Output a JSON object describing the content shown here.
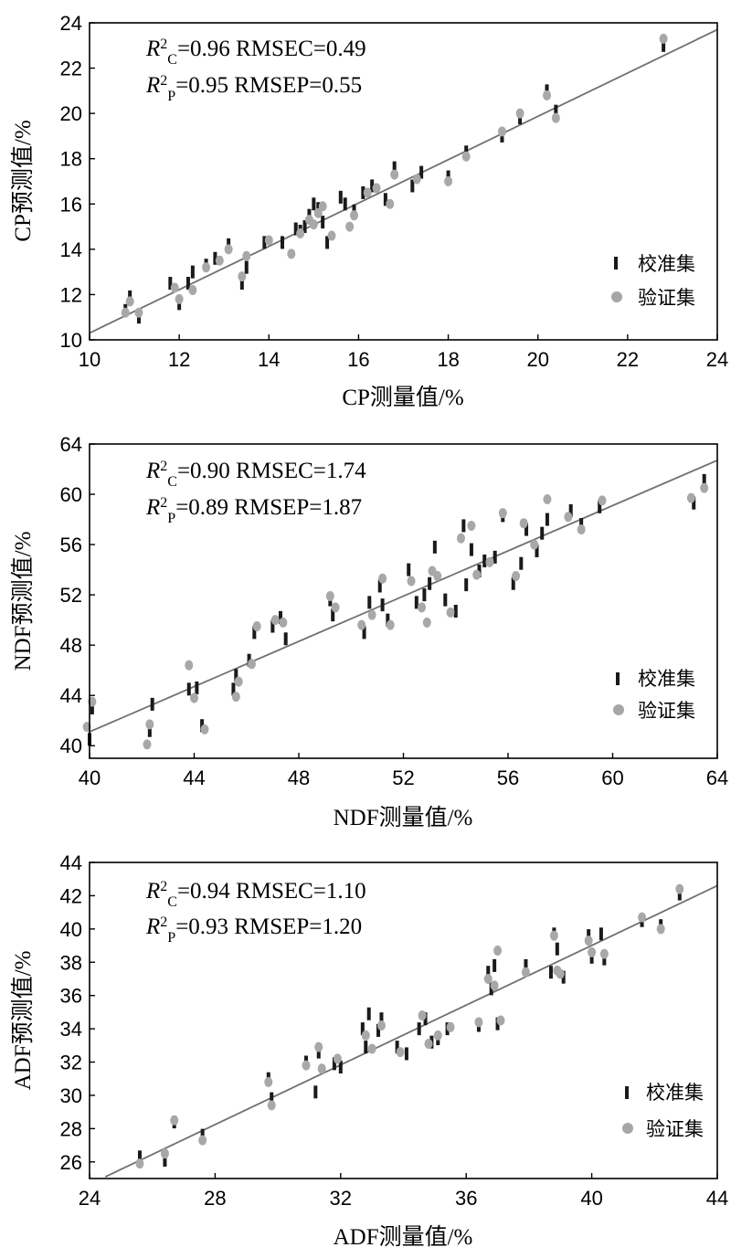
{
  "chart_data": [
    {
      "type": "scatter",
      "xlabel": "CP测量值/%",
      "ylabel": "CP预测值/%",
      "xlim": [
        10,
        24
      ],
      "ylim": [
        10,
        24
      ],
      "xticks": [
        "10",
        "12",
        "14",
        "16",
        "18",
        "20",
        "22",
        "24"
      ],
      "yticks": [
        "10",
        "12",
        "14",
        "16",
        "18",
        "20",
        "22",
        "24"
      ],
      "stats": {
        "rc_prefix": "R",
        "rc_sup": "2",
        "rc_sub": "C",
        "rc_rest": "=0.96 RMSEC=0.49",
        "rp_prefix": "R",
        "rp_sup": "2",
        "rp_sub": "P",
        "rp_rest": "=0.95 RMSEP=0.55"
      },
      "fit_line": [
        [
          10,
          10.3
        ],
        [
          24,
          23.7
        ]
      ],
      "legend": [
        "校准集",
        "验证集"
      ],
      "legend_position": "bottom-right",
      "calibration": [
        [
          10.8,
          11.3
        ],
        [
          10.9,
          11.9
        ],
        [
          11.1,
          11.0
        ],
        [
          11.8,
          12.5
        ],
        [
          12.0,
          11.6
        ],
        [
          12.2,
          12.5
        ],
        [
          12.3,
          13.0
        ],
        [
          12.6,
          13.3
        ],
        [
          12.8,
          13.6
        ],
        [
          13.1,
          14.2
        ],
        [
          13.4,
          12.5
        ],
        [
          13.5,
          13.2
        ],
        [
          13.9,
          14.3
        ],
        [
          14.3,
          14.3
        ],
        [
          14.6,
          14.9
        ],
        [
          14.7,
          14.8
        ],
        [
          14.8,
          15.0
        ],
        [
          14.9,
          15.5
        ],
        [
          15.0,
          16.0
        ],
        [
          15.1,
          15.8
        ],
        [
          15.2,
          15.2
        ],
        [
          15.3,
          14.3
        ],
        [
          15.6,
          16.3
        ],
        [
          15.7,
          16.0
        ],
        [
          15.9,
          15.7
        ],
        [
          16.1,
          16.5
        ],
        [
          16.3,
          16.8
        ],
        [
          16.6,
          16.2
        ],
        [
          16.8,
          17.6
        ],
        [
          17.2,
          16.8
        ],
        [
          17.4,
          17.4
        ],
        [
          18.0,
          17.2
        ],
        [
          18.4,
          18.3
        ],
        [
          19.2,
          19.0
        ],
        [
          19.6,
          19.8
        ],
        [
          20.2,
          21.0
        ],
        [
          20.4,
          20.1
        ],
        [
          22.8,
          23.0
        ]
      ],
      "validation": [
        [
          10.8,
          11.2
        ],
        [
          10.9,
          11.7
        ],
        [
          11.1,
          11.2
        ],
        [
          11.9,
          12.3
        ],
        [
          12.0,
          11.8
        ],
        [
          12.3,
          12.2
        ],
        [
          12.6,
          13.2
        ],
        [
          12.9,
          13.5
        ],
        [
          13.1,
          14.0
        ],
        [
          13.4,
          12.8
        ],
        [
          13.5,
          13.7
        ],
        [
          14.0,
          14.4
        ],
        [
          14.5,
          13.8
        ],
        [
          14.7,
          14.7
        ],
        [
          14.9,
          15.3
        ],
        [
          15.0,
          15.1
        ],
        [
          15.1,
          15.6
        ],
        [
          15.2,
          15.9
        ],
        [
          15.4,
          14.6
        ],
        [
          15.8,
          15.0
        ],
        [
          15.9,
          15.5
        ],
        [
          16.2,
          16.5
        ],
        [
          16.4,
          16.7
        ],
        [
          16.7,
          16.0
        ],
        [
          16.8,
          17.3
        ],
        [
          17.3,
          17.1
        ],
        [
          18.0,
          17.0
        ],
        [
          18.4,
          18.1
        ],
        [
          19.2,
          19.2
        ],
        [
          19.6,
          20.0
        ],
        [
          20.2,
          20.8
        ],
        [
          20.4,
          19.8
        ],
        [
          22.8,
          23.3
        ]
      ]
    },
    {
      "type": "scatter",
      "xlabel": "NDF测量值/%",
      "ylabel": "NDF预测值/%",
      "xlim": [
        40,
        64
      ],
      "ylim": [
        39,
        64
      ],
      "xticks": [
        "40",
        "44",
        "48",
        "52",
        "56",
        "60",
        "64"
      ],
      "yticks": [
        "40",
        "44",
        "48",
        "52",
        "56",
        "60",
        "64"
      ],
      "stats": {
        "rc_prefix": "R",
        "rc_sup": "2",
        "rc_sub": "C",
        "rc_rest": "=0.90 RMSEC=1.74",
        "rp_prefix": "R",
        "rp_sup": "2",
        "rp_sub": "P",
        "rp_rest": "=0.89 RMSEP=1.87"
      },
      "fit_line": [
        [
          40,
          41.1
        ],
        [
          64,
          62.7
        ]
      ],
      "legend": [
        "校准集",
        "验证集"
      ],
      "legend_position": "bottom-right",
      "calibration": [
        [
          40.0,
          40.5
        ],
        [
          40.1,
          43.0
        ],
        [
          42.3,
          41.2
        ],
        [
          42.4,
          43.3
        ],
        [
          43.8,
          44.5
        ],
        [
          44.1,
          44.6
        ],
        [
          44.3,
          41.6
        ],
        [
          45.5,
          44.5
        ],
        [
          45.6,
          45.6
        ],
        [
          46.1,
          46.8
        ],
        [
          46.3,
          49.0
        ],
        [
          47.0,
          49.5
        ],
        [
          47.3,
          50.2
        ],
        [
          47.5,
          48.5
        ],
        [
          49.2,
          51.6
        ],
        [
          49.3,
          50.4
        ],
        [
          50.5,
          49.0
        ],
        [
          50.7,
          51.4
        ],
        [
          51.1,
          52.7
        ],
        [
          51.2,
          51.2
        ],
        [
          51.4,
          50.0
        ],
        [
          52.2,
          54.0
        ],
        [
          52.5,
          51.4
        ],
        [
          52.8,
          52.0
        ],
        [
          53.0,
          52.9
        ],
        [
          53.2,
          55.8
        ],
        [
          53.6,
          51.6
        ],
        [
          54.0,
          50.7
        ],
        [
          54.3,
          57.5
        ],
        [
          54.4,
          52.8
        ],
        [
          54.6,
          55.6
        ],
        [
          54.9,
          53.9
        ],
        [
          55.1,
          54.7
        ],
        [
          55.5,
          55.0
        ],
        [
          55.8,
          58.3
        ],
        [
          56.2,
          52.9
        ],
        [
          56.5,
          54.5
        ],
        [
          56.7,
          57.2
        ],
        [
          57.1,
          55.5
        ],
        [
          57.3,
          56.9
        ],
        [
          57.5,
          58.0
        ],
        [
          58.4,
          58.7
        ],
        [
          58.8,
          57.6
        ],
        [
          59.5,
          59.0
        ],
        [
          63.1,
          59.3
        ],
        [
          63.5,
          61.1
        ]
      ],
      "validation": [
        [
          39.9,
          41.5
        ],
        [
          40.1,
          43.5
        ],
        [
          42.2,
          40.1
        ],
        [
          42.3,
          41.7
        ],
        [
          43.8,
          46.4
        ],
        [
          44.0,
          43.8
        ],
        [
          44.4,
          41.3
        ],
        [
          45.6,
          43.9
        ],
        [
          45.7,
          45.1
        ],
        [
          46.2,
          46.5
        ],
        [
          46.4,
          49.5
        ],
        [
          47.1,
          50.0
        ],
        [
          47.4,
          49.8
        ],
        [
          49.2,
          51.9
        ],
        [
          49.4,
          51.0
        ],
        [
          50.4,
          49.6
        ],
        [
          50.8,
          50.4
        ],
        [
          51.2,
          53.3
        ],
        [
          51.5,
          49.6
        ],
        [
          52.3,
          53.1
        ],
        [
          52.7,
          51.0
        ],
        [
          52.9,
          49.8
        ],
        [
          53.1,
          53.9
        ],
        [
          53.3,
          53.5
        ],
        [
          53.8,
          50.6
        ],
        [
          54.2,
          56.5
        ],
        [
          54.6,
          57.5
        ],
        [
          54.8,
          53.6
        ],
        [
          55.3,
          54.6
        ],
        [
          55.8,
          58.5
        ],
        [
          56.3,
          53.5
        ],
        [
          56.6,
          57.7
        ],
        [
          57.0,
          56.0
        ],
        [
          57.5,
          59.6
        ],
        [
          58.3,
          58.2
        ],
        [
          58.8,
          57.2
        ],
        [
          59.6,
          59.5
        ],
        [
          63.0,
          59.7
        ],
        [
          63.5,
          60.5
        ]
      ]
    },
    {
      "type": "scatter",
      "xlabel": "ADF测量值/%",
      "ylabel": "ADF预测值/%",
      "xlim": [
        24,
        44
      ],
      "ylim": [
        25,
        44
      ],
      "xticks": [
        "24",
        "28",
        "32",
        "36",
        "40",
        "44"
      ],
      "yticks": [
        "26",
        "28",
        "30",
        "32",
        "34",
        "36",
        "38",
        "40",
        "42",
        "44"
      ],
      "stats": {
        "rc_prefix": "R",
        "rc_sup": "2",
        "rc_sub": "C",
        "rc_rest": "=0.94 RMSEC=1.10",
        "rp_prefix": "R",
        "rp_sup": "2",
        "rp_sub": "P",
        "rp_rest": "=0.93 RMSEP=1.20"
      },
      "fit_line": [
        [
          24.5,
          25.1
        ],
        [
          44,
          42.6
        ]
      ],
      "legend": [
        "校准集",
        "验证集"
      ],
      "legend_position": "bottom-right",
      "calibration": [
        [
          25.6,
          26.3
        ],
        [
          26.4,
          26.1
        ],
        [
          26.7,
          28.4
        ],
        [
          27.6,
          27.6
        ],
        [
          29.7,
          31.0
        ],
        [
          29.8,
          29.8
        ],
        [
          30.9,
          32.0
        ],
        [
          31.2,
          30.2
        ],
        [
          31.3,
          32.6
        ],
        [
          31.8,
          31.9
        ],
        [
          32.0,
          31.7
        ],
        [
          32.7,
          34.0
        ],
        [
          32.8,
          32.9
        ],
        [
          32.9,
          34.9
        ],
        [
          33.2,
          33.9
        ],
        [
          33.3,
          34.6
        ],
        [
          33.8,
          32.9
        ],
        [
          34.1,
          32.5
        ],
        [
          34.5,
          34.0
        ],
        [
          34.7,
          34.6
        ],
        [
          34.9,
          33.2
        ],
        [
          35.1,
          33.4
        ],
        [
          35.4,
          34.0
        ],
        [
          36.4,
          34.2
        ],
        [
          36.7,
          37.4
        ],
        [
          36.8,
          36.4
        ],
        [
          36.9,
          37.8
        ],
        [
          37.0,
          34.3
        ],
        [
          37.9,
          37.8
        ],
        [
          38.7,
          37.4
        ],
        [
          38.8,
          39.7
        ],
        [
          38.9,
          38.8
        ],
        [
          39.1,
          37.1
        ],
        [
          39.9,
          39.6
        ],
        [
          40.0,
          38.3
        ],
        [
          40.3,
          39.7
        ],
        [
          40.4,
          38.2
        ],
        [
          41.6,
          40.5
        ],
        [
          42.2,
          40.2
        ],
        [
          42.8,
          42.1
        ]
      ],
      "validation": [
        [
          25.6,
          25.9
        ],
        [
          26.4,
          26.5
        ],
        [
          26.7,
          28.5
        ],
        [
          27.6,
          27.3
        ],
        [
          29.7,
          30.8
        ],
        [
          29.8,
          29.4
        ],
        [
          30.9,
          31.8
        ],
        [
          31.3,
          32.9
        ],
        [
          31.4,
          31.6
        ],
        [
          31.9,
          32.2
        ],
        [
          32.8,
          33.6
        ],
        [
          33.0,
          32.8
        ],
        [
          33.3,
          34.2
        ],
        [
          33.9,
          32.6
        ],
        [
          34.6,
          34.8
        ],
        [
          34.8,
          33.1
        ],
        [
          35.1,
          33.6
        ],
        [
          35.5,
          34.1
        ],
        [
          36.4,
          34.4
        ],
        [
          36.7,
          37.0
        ],
        [
          36.9,
          36.6
        ],
        [
          37.0,
          38.7
        ],
        [
          37.1,
          34.5
        ],
        [
          37.9,
          37.4
        ],
        [
          38.8,
          39.6
        ],
        [
          38.9,
          37.5
        ],
        [
          39.0,
          37.3
        ],
        [
          39.9,
          39.3
        ],
        [
          40.0,
          38.6
        ],
        [
          40.4,
          38.5
        ],
        [
          41.6,
          40.7
        ],
        [
          42.2,
          40.0
        ],
        [
          42.8,
          42.4
        ]
      ]
    }
  ]
}
